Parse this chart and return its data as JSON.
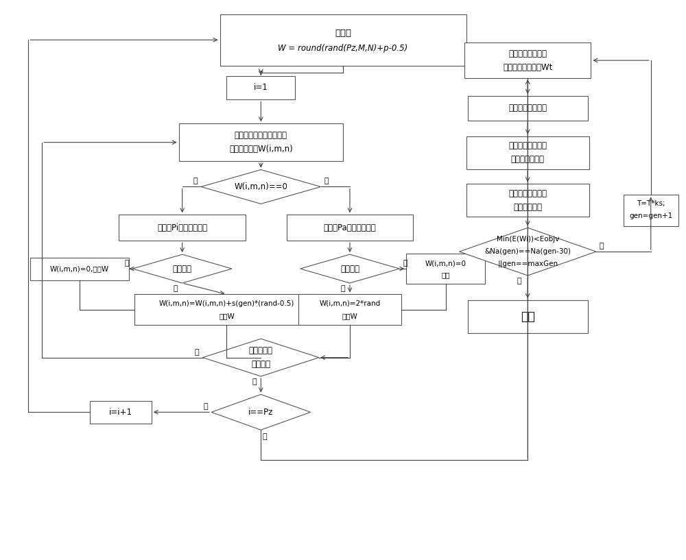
{
  "bg_color": "#ffffff",
  "box_edge": "#555555",
  "arrow_color": "#444444",
  "text_color": "#000000",
  "font_size": 8.5,
  "nodes": {
    "init_line1": "初始化",
    "init_line2": "W = round(rand(Pz,M,N)+p-0.5)",
    "i1": "i=1",
    "select1": "按随机序列选取换能器，",
    "select2": "其权值系数为W(i,m,n)",
    "diamond_w": "W(i,m,n)==0",
    "deactivate": "以概率Pi灭活该换能器",
    "activate": "以概率Pa激活该换能器",
    "diamond_deact": "灭活成功",
    "diamond_act": "激活成功",
    "update_w0": "W(i,m,n)=0,更新W",
    "update_keep1": "W(i,m,n)=0",
    "update_keep2": "保持",
    "update_formula1": "W(i,m,n)=W(i,m,n)+s(gen)*(rand-0.5)",
    "update_formula2": "更新W",
    "update_2rand1": "W(i,m,n)=2*rand",
    "update_2rand2": "更新W",
    "all_visited1": "所有换能器",
    "all_visited2": "都已遍历",
    "ipz": "i==Pz",
    "ii1": "i=i+1",
    "eval1": "评价班级个体能量",
    "eval2": "值，选择教师矩阵Wt",
    "self_learn": "教师矩阵自我学习",
    "teacher1": "教阶段，学生矩阵",
    "teacher2": "向教师矩阵学习",
    "student1": "学阶段，学生矩阵",
    "student2": "之间互相学习",
    "min1": "Min(E(Wi))<Eobjv",
    "min2": "&Na(gen)==Na(gen-30)",
    "min3": "||gen==maxGen",
    "end": "结束",
    "update_T1": "T=T*ks;",
    "update_T2": "gen=gen+1",
    "label_no1": "否",
    "label_yes1": "是",
    "label_no2": "否",
    "label_yes2": "是",
    "label_no3": "否",
    "label_yes3": "是",
    "label_no4": "否",
    "label_yes4": "是",
    "label_no5": "否",
    "label_yes5": "是",
    "label_no6": "否",
    "label_yes6": "是"
  }
}
